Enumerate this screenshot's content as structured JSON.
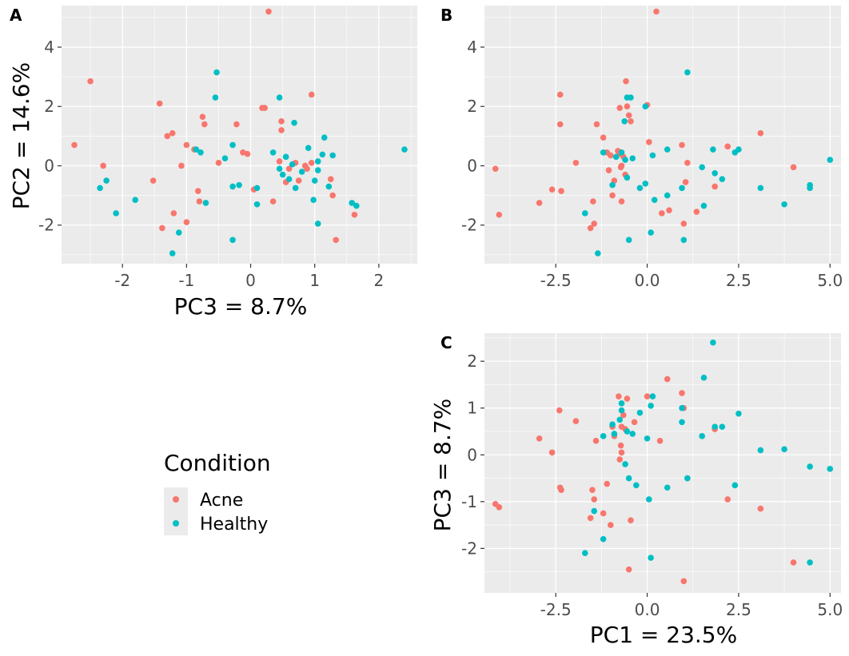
{
  "chart_data": [
    {
      "type": "scatter",
      "panel": "A",
      "xlabel": "PC3 = 8.7%",
      "ylabel": "PC2 = 14.6%",
      "xlim": [
        -2.95,
        2.6
      ],
      "ylim": [
        -3.3,
        5.4
      ],
      "xticks": [
        -2,
        -1,
        0,
        1,
        2
      ],
      "yticks": [
        -2,
        0,
        2,
        4
      ],
      "xtick_labels": [
        "-2",
        "-1",
        "0",
        "1",
        "2"
      ],
      "ytick_labels": [
        "-2",
        "0",
        "2",
        "4"
      ],
      "grid": true,
      "series": [
        {
          "name": "Acne",
          "color": "#F8766D",
          "points": [
            [
              -2.75,
              0.7
            ],
            [
              -2.5,
              2.85
            ],
            [
              -2.3,
              0
            ],
            [
              -1.52,
              -0.5
            ],
            [
              -1.42,
              2.1
            ],
            [
              -1.38,
              -2.1
            ],
            [
              -1.3,
              1.0
            ],
            [
              -1.22,
              1.1
            ],
            [
              -1.2,
              -1.6
            ],
            [
              -1.08,
              0
            ],
            [
              -1.0,
              0.7
            ],
            [
              -1.0,
              -1.9
            ],
            [
              -0.75,
              1.65
            ],
            [
              -0.88,
              0.55
            ],
            [
              -0.82,
              -0.85
            ],
            [
              -0.8,
              -1.2
            ],
            [
              -0.72,
              1.4
            ],
            [
              -0.5,
              0.1
            ],
            [
              -0.22,
              1.4
            ],
            [
              -0.12,
              0.45
            ],
            [
              -0.05,
              0.4
            ],
            [
              0.05,
              -0.8
            ],
            [
              0.18,
              1.95
            ],
            [
              0.22,
              1.95
            ],
            [
              0.28,
              5.2
            ],
            [
              0.35,
              -1.2
            ],
            [
              0.45,
              0.15
            ],
            [
              0.48,
              1.5
            ],
            [
              0.48,
              1.2
            ],
            [
              0.6,
              -0.1
            ],
            [
              0.7,
              0.1
            ],
            [
              0.85,
              0
            ],
            [
              0.88,
              -0.1
            ],
            [
              0.95,
              2.4
            ],
            [
              0.95,
              0.1
            ],
            [
              1.25,
              -0.45
            ],
            [
              1.28,
              -1.0
            ],
            [
              1.33,
              -2.5
            ],
            [
              1.62,
              -1.65
            ],
            [
              0.55,
              -0.55
            ],
            [
              0.75,
              -0.5
            ]
          ]
        },
        {
          "name": "Healthy",
          "color": "#00BFC4",
          "points": [
            [
              -2.35,
              -0.75
            ],
            [
              -2.25,
              -0.5
            ],
            [
              -2.1,
              -1.6
            ],
            [
              -1.8,
              -1.15
            ],
            [
              -1.22,
              -2.95
            ],
            [
              -1.12,
              -2.25
            ],
            [
              -0.85,
              0.55
            ],
            [
              -0.78,
              0.45
            ],
            [
              -0.7,
              -1.25
            ],
            [
              -0.55,
              2.3
            ],
            [
              -0.53,
              3.15
            ],
            [
              -0.4,
              0.25
            ],
            [
              -0.28,
              0.7
            ],
            [
              -0.28,
              -0.7
            ],
            [
              -0.28,
              -2.5
            ],
            [
              -0.18,
              -0.65
            ],
            [
              0.1,
              -0.75
            ],
            [
              0.1,
              -1.3
            ],
            [
              0.35,
              0.45
            ],
            [
              0.45,
              2.3
            ],
            [
              0.45,
              -0.1
            ],
            [
              0.5,
              -0.3
            ],
            [
              0.55,
              0.3
            ],
            [
              0.6,
              -0.45
            ],
            [
              0.65,
              0.05
            ],
            [
              0.68,
              1.45
            ],
            [
              0.7,
              -0.75
            ],
            [
              0.8,
              -0.2
            ],
            [
              0.9,
              0.6
            ],
            [
              1.0,
              -0.5
            ],
            [
              1.05,
              -0.15
            ],
            [
              1.05,
              0.15
            ],
            [
              1.12,
              0.38
            ],
            [
              1.15,
              0.95
            ],
            [
              1.22,
              -0.7
            ],
            [
              1.28,
              0.35
            ],
            [
              1.58,
              -1.25
            ],
            [
              1.65,
              -1.35
            ],
            [
              2.4,
              0.55
            ],
            [
              0.98,
              -1.15
            ],
            [
              1.05,
              -1.95
            ]
          ]
        }
      ]
    },
    {
      "type": "scatter",
      "panel": "B",
      "xlabel": "",
      "ylabel": "",
      "xlim": [
        -4.45,
        5.3
      ],
      "ylim": [
        -3.3,
        5.4
      ],
      "xticks": [
        -2.5,
        0,
        2.5,
        5
      ],
      "yticks": [
        -2,
        0,
        2,
        4
      ],
      "xtick_labels": [
        "-2.5",
        "0.0",
        "2.5",
        "5.0"
      ],
      "ytick_labels": [
        "-2",
        "0",
        "2",
        "4"
      ],
      "grid": true,
      "series": [
        {
          "name": "Acne",
          "color": "#F8766D",
          "points": [
            [
              -4.15,
              -0.1
            ],
            [
              -4.05,
              -1.65
            ],
            [
              -2.95,
              -1.25
            ],
            [
              -2.6,
              -0.8
            ],
            [
              -2.38,
              2.4
            ],
            [
              -2.38,
              1.4
            ],
            [
              -2.35,
              -0.85
            ],
            [
              -1.95,
              0.1
            ],
            [
              -1.55,
              -2.1
            ],
            [
              -1.48,
              -1.2
            ],
            [
              -1.45,
              -1.95
            ],
            [
              -1.38,
              1.4
            ],
            [
              -1.2,
              0.95
            ],
            [
              -1.1,
              0.45
            ],
            [
              -1.05,
              -0.15
            ],
            [
              -1.0,
              0.35
            ],
            [
              -0.95,
              -1.0
            ],
            [
              -0.9,
              -0.5
            ],
            [
              -0.8,
              0.5
            ],
            [
              -0.75,
              0.4
            ],
            [
              -0.72,
              -0.05
            ],
            [
              -0.7,
              0
            ],
            [
              -0.65,
              0.3
            ],
            [
              -0.6,
              -0.3
            ],
            [
              -0.58,
              2.85
            ],
            [
              -0.55,
              2.0
            ],
            [
              -0.5,
              1.7
            ],
            [
              -0.45,
              1.5
            ],
            [
              -0.75,
              1.95
            ],
            [
              -0.7,
              -1.2
            ],
            [
              0,
              2.05
            ],
            [
              0.05,
              0.8
            ],
            [
              0.25,
              5.2
            ],
            [
              0.4,
              -1.6
            ],
            [
              0.6,
              -1.5
            ],
            [
              0.95,
              0.7
            ],
            [
              1.0,
              -1.95
            ],
            [
              1.05,
              -0.55
            ],
            [
              1.1,
              0.1
            ],
            [
              1.35,
              -1.55
            ],
            [
              1.85,
              -0.7
            ],
            [
              2.2,
              0.65
            ],
            [
              3.1,
              1.1
            ],
            [
              4.0,
              -0.05
            ]
          ]
        },
        {
          "name": "Healthy",
          "color": "#00BFC4",
          "points": [
            [
              -1.7,
              -1.6
            ],
            [
              -1.35,
              -2.95
            ],
            [
              -1.2,
              0.45
            ],
            [
              -0.95,
              -0.65
            ],
            [
              -0.85,
              0.3
            ],
            [
              -0.7,
              0.45
            ],
            [
              -0.62,
              1.5
            ],
            [
              -0.6,
              0.2
            ],
            [
              -0.55,
              2.3
            ],
            [
              -0.45,
              2.3
            ],
            [
              -0.5,
              -2.5
            ],
            [
              -0.4,
              0.25
            ],
            [
              -0.2,
              -0.75
            ],
            [
              -0.05,
              2.0
            ],
            [
              -0.05,
              -0.6
            ],
            [
              0.1,
              -2.25
            ],
            [
              0.15,
              0.35
            ],
            [
              0.2,
              -1.15
            ],
            [
              0.55,
              0.55
            ],
            [
              0.95,
              -0.75
            ],
            [
              1.0,
              -2.5
            ],
            [
              1.1,
              3.15
            ],
            [
              1.5,
              -0.05
            ],
            [
              1.55,
              -1.35
            ],
            [
              1.8,
              0.55
            ],
            [
              1.85,
              -0.25
            ],
            [
              2.05,
              -0.45
            ],
            [
              2.4,
              0.45
            ],
            [
              2.5,
              0.55
            ],
            [
              3.1,
              -0.75
            ],
            [
              3.75,
              -1.3
            ],
            [
              4.45,
              -0.65
            ],
            [
              4.45,
              -0.75
            ],
            [
              5.0,
              0.2
            ],
            [
              0.55,
              -1.0
            ],
            [
              -0.55,
              -0.4
            ]
          ]
        }
      ]
    },
    {
      "type": "scatter",
      "panel": "C",
      "xlabel": "PC1 = 23.5%",
      "ylabel": "PC3 = 8.7%",
      "xlim": [
        -4.45,
        5.3
      ],
      "ylim": [
        -2.95,
        2.6
      ],
      "xticks": [
        -2.5,
        0,
        2.5,
        5
      ],
      "yticks": [
        -2,
        -1,
        0,
        1,
        2
      ],
      "xtick_labels": [
        "-2.5",
        "0.0",
        "2.5",
        "5.0"
      ],
      "ytick_labels": [
        "-2",
        "-1",
        "0",
        "1",
        "2"
      ],
      "grid": true,
      "series": [
        {
          "name": "Acne",
          "color": "#F8766D",
          "points": [
            [
              -4.15,
              -1.05
            ],
            [
              -4.05,
              -1.12
            ],
            [
              -2.95,
              0.35
            ],
            [
              -2.6,
              0.05
            ],
            [
              -2.4,
              0.95
            ],
            [
              -2.38,
              -0.7
            ],
            [
              -2.35,
              -0.75
            ],
            [
              -1.95,
              0.72
            ],
            [
              -1.55,
              -1.35
            ],
            [
              -1.5,
              -0.75
            ],
            [
              -1.45,
              -0.95
            ],
            [
              -1.4,
              0.3
            ],
            [
              -1.2,
              -1.25
            ],
            [
              -1.0,
              -1.5
            ],
            [
              -0.95,
              0.6
            ],
            [
              -0.9,
              0.4
            ],
            [
              -0.78,
              1.25
            ],
            [
              -0.75,
              -0.1
            ],
            [
              -0.72,
              0.2
            ],
            [
              -0.7,
              0.05
            ],
            [
              -0.65,
              0.85
            ],
            [
              -0.6,
              0.55
            ],
            [
              -0.55,
              1.2
            ],
            [
              -0.5,
              -2.45
            ],
            [
              -0.45,
              -1.4
            ],
            [
              -0.35,
              0.7
            ],
            [
              0,
              1.25
            ],
            [
              0.35,
              0.3
            ],
            [
              0.55,
              1.62
            ],
            [
              0.95,
              1.32
            ],
            [
              1.0,
              1.0
            ],
            [
              1.0,
              -2.7
            ],
            [
              1.1,
              -0.5
            ],
            [
              1.85,
              0.55
            ],
            [
              2.2,
              -0.95
            ],
            [
              3.1,
              -1.15
            ],
            [
              4.0,
              -2.3
            ],
            [
              -0.7,
              0.6
            ],
            [
              -1.1,
              -0.62
            ]
          ]
        },
        {
          "name": "Healthy",
          "color": "#00BFC4",
          "points": [
            [
              -1.7,
              -2.1
            ],
            [
              -1.45,
              -1.2
            ],
            [
              -1.2,
              -1.8
            ],
            [
              -1.2,
              0.4
            ],
            [
              -0.95,
              0.65
            ],
            [
              -0.9,
              0.45
            ],
            [
              -0.7,
              1.1
            ],
            [
              -0.7,
              0.95
            ],
            [
              -0.6,
              -0.2
            ],
            [
              -0.55,
              0.5
            ],
            [
              -0.5,
              -0.5
            ],
            [
              -0.4,
              0.45
            ],
            [
              -0.3,
              -0.65
            ],
            [
              -0.2,
              0.9
            ],
            [
              0.05,
              -0.95
            ],
            [
              0.1,
              1.05
            ],
            [
              0.1,
              -2.2
            ],
            [
              0.15,
              1.25
            ],
            [
              0.55,
              -0.7
            ],
            [
              0.95,
              1.0
            ],
            [
              0.95,
              0.7
            ],
            [
              1.1,
              -0.5
            ],
            [
              1.5,
              0.4
            ],
            [
              1.55,
              1.65
            ],
            [
              1.8,
              2.4
            ],
            [
              1.85,
              0.6
            ],
            [
              2.05,
              0.6
            ],
            [
              2.4,
              -0.65
            ],
            [
              2.5,
              0.88
            ],
            [
              3.1,
              0.1
            ],
            [
              3.75,
              0.12
            ],
            [
              4.45,
              -0.25
            ],
            [
              4.45,
              -2.3
            ],
            [
              5.0,
              -0.3
            ],
            [
              -0.75,
              0.75
            ],
            [
              0,
              0.35
            ]
          ]
        }
      ]
    }
  ],
  "legend": {
    "title": "Condition",
    "placement": "bottom-left",
    "items": [
      {
        "label": "Acne",
        "color": "#F8766D"
      },
      {
        "label": "Healthy",
        "color": "#00BFC4"
      }
    ]
  },
  "panel_tags": [
    "A",
    "B",
    "C"
  ],
  "colors": {
    "panel_background": "#EBEBEB",
    "grid_major": "#FFFFFF",
    "tick_text": "#4D4D4D"
  }
}
